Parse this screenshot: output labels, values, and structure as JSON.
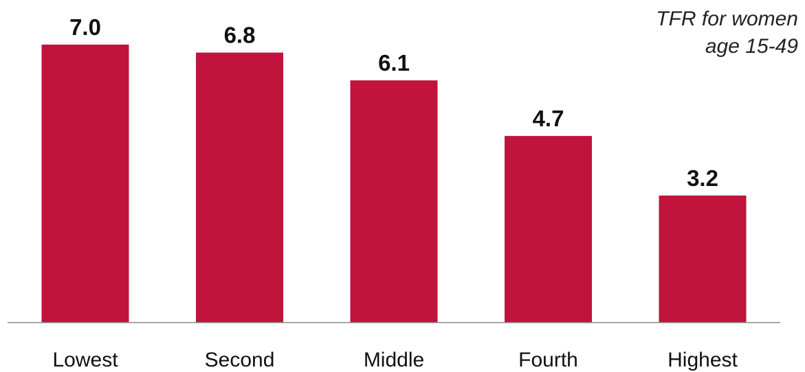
{
  "chart_data": {
    "type": "bar",
    "title": "",
    "xlabel": "",
    "ylabel": "",
    "categories": [
      "Lowest",
      "Second",
      "Middle",
      "Fourth",
      "Highest"
    ],
    "values": [
      7.0,
      6.8,
      6.1,
      4.7,
      3.2
    ],
    "value_labels": [
      "7.0",
      "6.8",
      "6.1",
      "4.7",
      "3.2"
    ],
    "ylim": [
      0,
      7.0
    ],
    "grid": false,
    "bar_color": "#c0143c",
    "axis_color": "#888888"
  },
  "annotation": {
    "line1": "TFR for women",
    "line2": "age 15-49"
  }
}
